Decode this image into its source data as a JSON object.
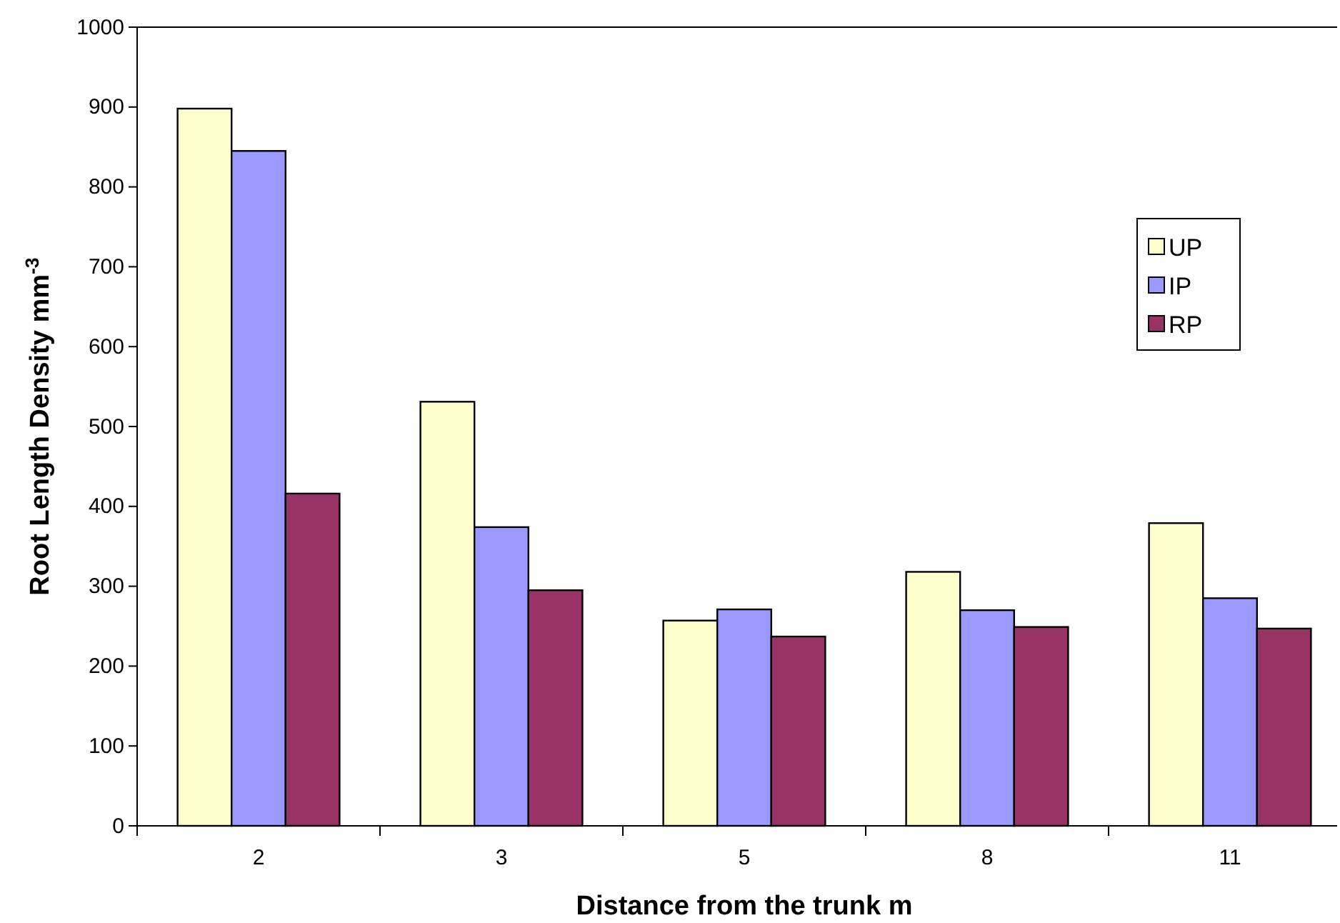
{
  "chart_data": {
    "type": "bar",
    "xlabel": "Distance from the trunk m",
    "ylabel": "Root Length Density mm$^{-3}$",
    "categories": [
      "2",
      "3",
      "5",
      "8",
      "11"
    ],
    "series": [
      {
        "name": "UP",
        "color": "#ffffcc",
        "values": [
          898,
          531,
          257,
          318,
          379
        ]
      },
      {
        "name": "IP",
        "color": "#9999ff",
        "values": [
          845,
          374,
          271,
          270,
          285
        ]
      },
      {
        "name": "RP",
        "color": "#993366",
        "values": [
          416,
          295,
          237,
          249,
          247
        ]
      }
    ],
    "ylim": [
      0,
      1000
    ],
    "yticks": [
      0,
      100,
      200,
      300,
      400,
      500,
      600,
      700,
      800,
      900,
      1000
    ],
    "legend": "top right"
  }
}
